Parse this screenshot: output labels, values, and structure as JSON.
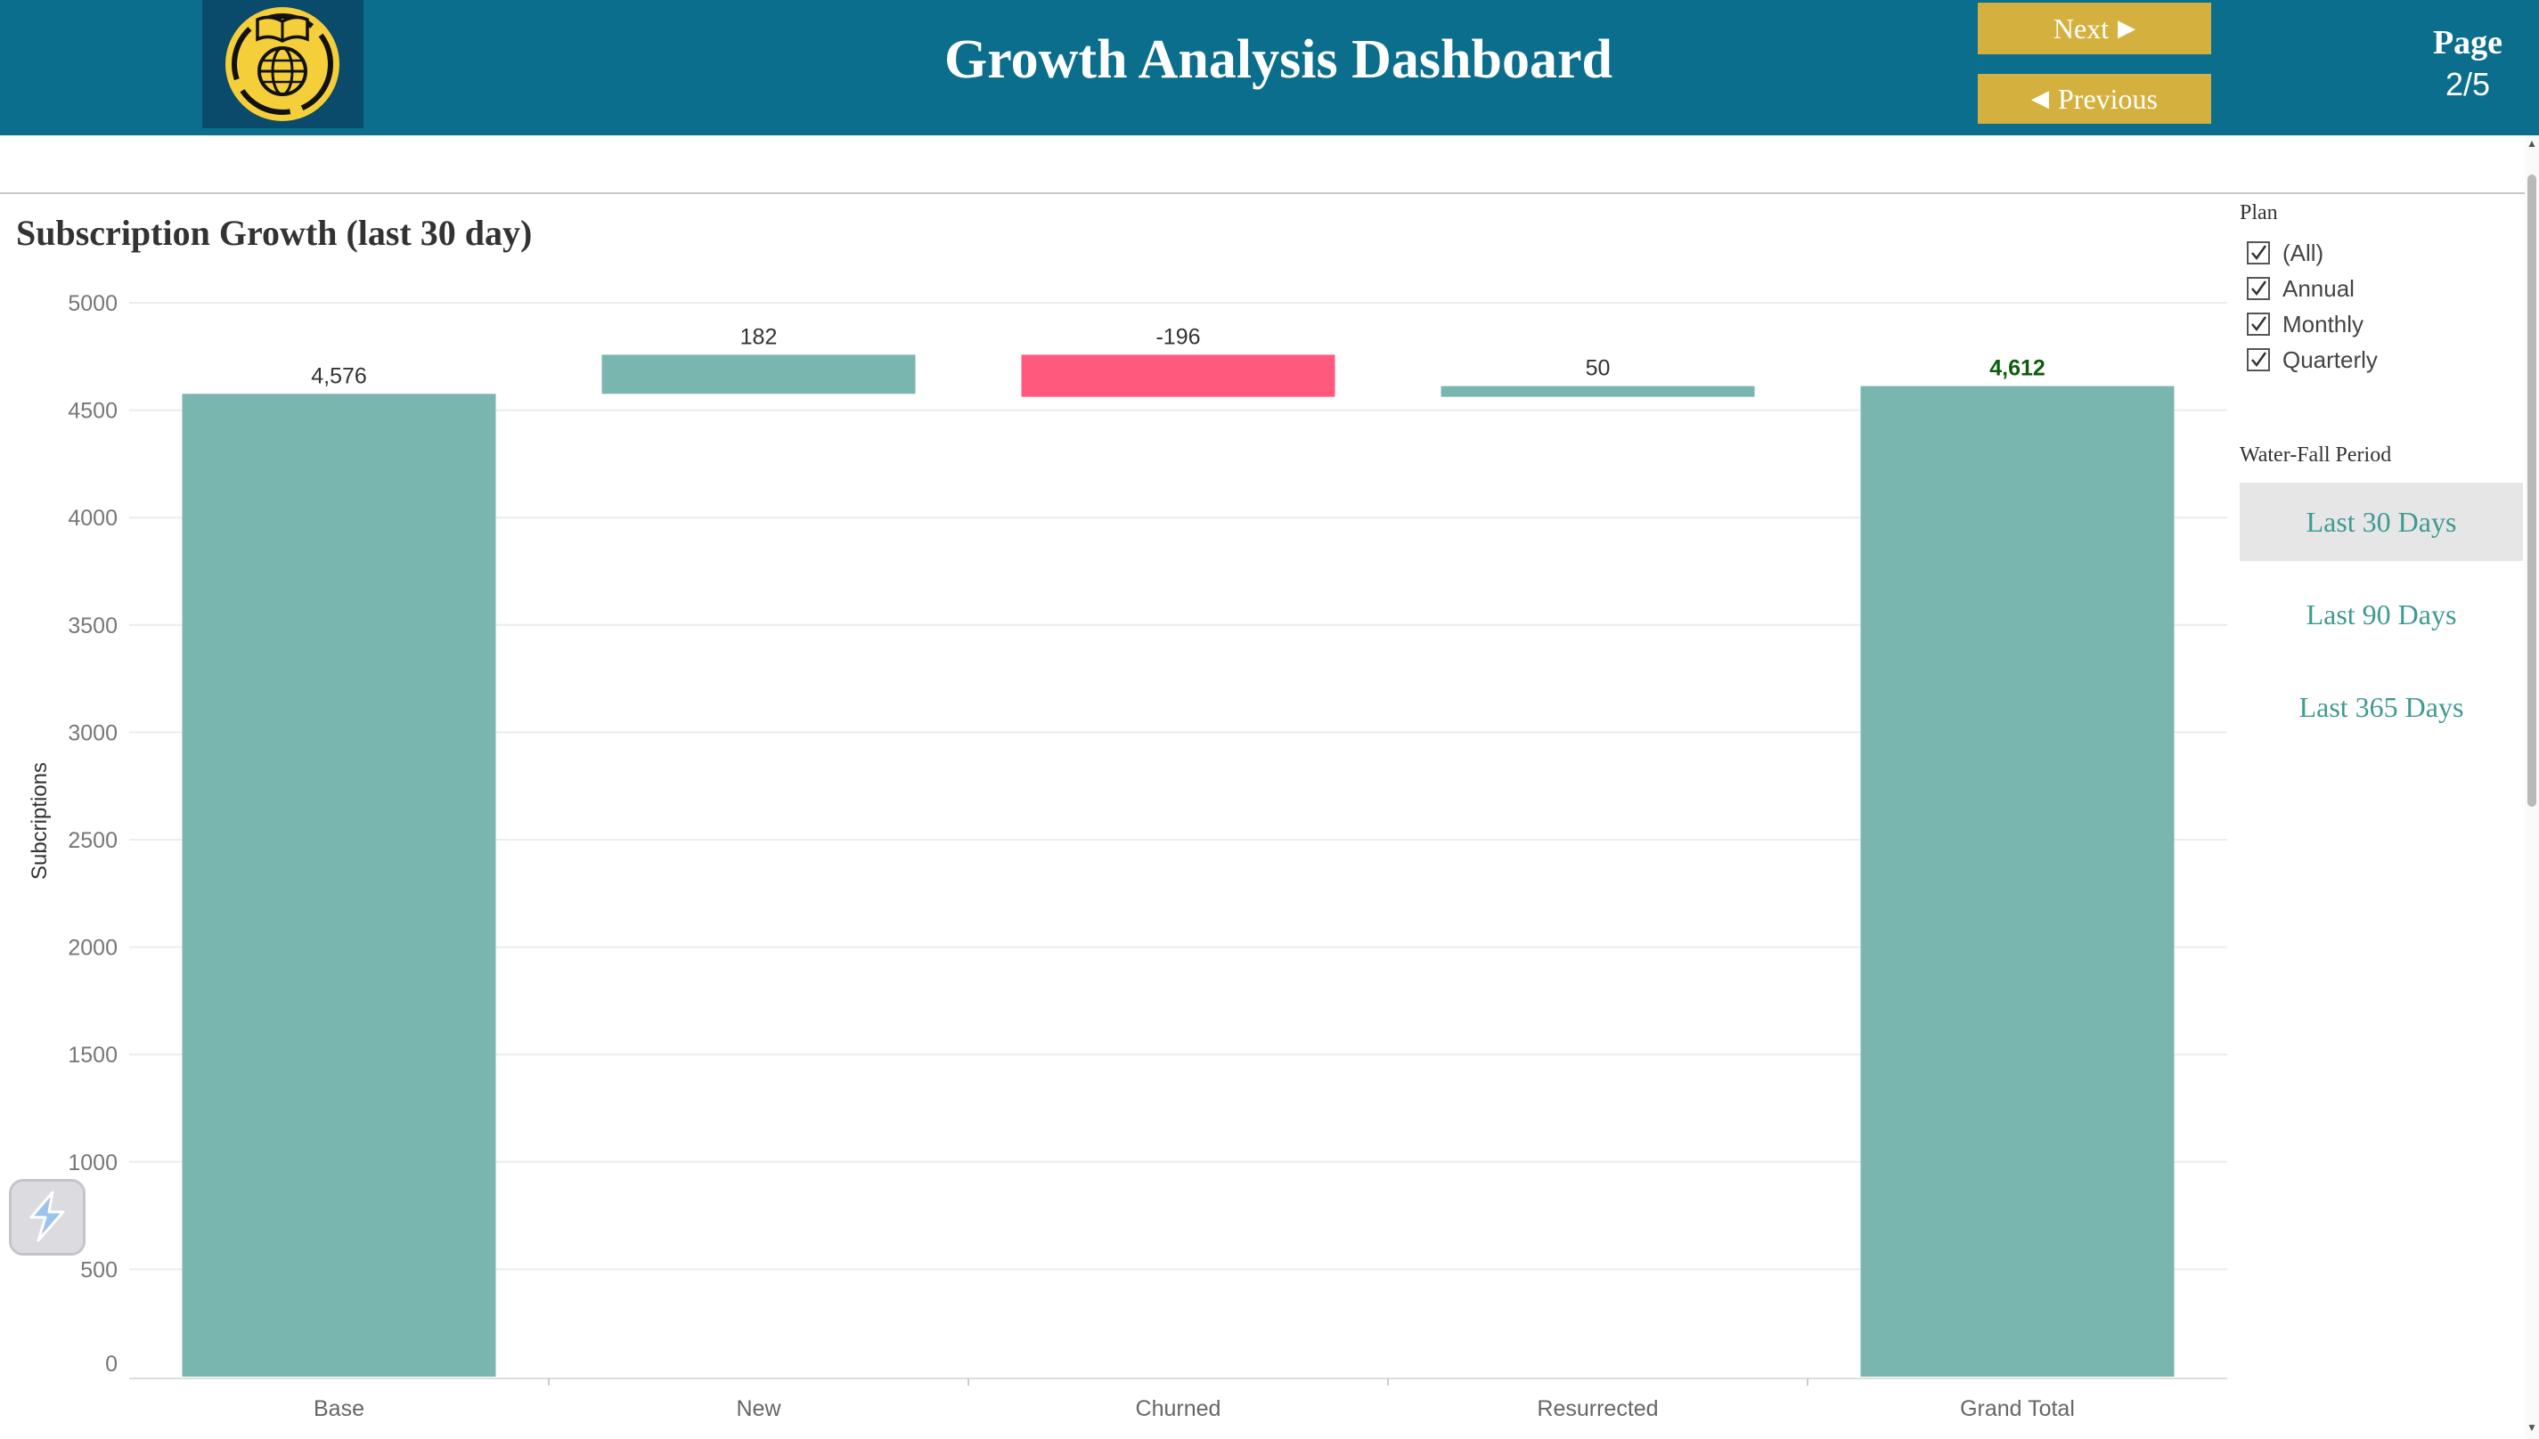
{
  "header": {
    "title": "Growth Analysis Dashboard",
    "next_label": "Next",
    "previous_label": "Previous",
    "page_label": "Page",
    "page_number": "2/5"
  },
  "chart_title": "Subscription Growth (last 30 day)",
  "filters": {
    "plan_title": "Plan",
    "plan_items": [
      {
        "label": "(All)",
        "checked": true
      },
      {
        "label": "Annual",
        "checked": true
      },
      {
        "label": "Monthly",
        "checked": true
      },
      {
        "label": "Quarterly",
        "checked": true
      }
    ],
    "period_title": "Water-Fall Period",
    "periods": [
      {
        "label": "Last 30 Days",
        "selected": true
      },
      {
        "label": "Last 90 Days",
        "selected": false
      },
      {
        "label": "Last 365 Days",
        "selected": false
      }
    ]
  },
  "colors": {
    "header_bg": "#0b6e8c",
    "button_gold": "#d4b13f",
    "bar_teal": "#7ab6b0",
    "bar_negative": "#ff5a7d",
    "total_label": "#0d5e0d"
  },
  "icons": {
    "logo": "book-globe-logo-icon",
    "next": "triangle-right-icon",
    "previous": "triangle-left-icon",
    "widget": "lightning-widget-icon"
  },
  "chart_data": {
    "type": "bar",
    "subtype": "waterfall",
    "title": "Subscription Growth (last 30 day)",
    "xlabel": "",
    "ylabel": "Subcriptions",
    "categories": [
      "Base",
      "New",
      "Churned",
      "Resurrected",
      "Grand Total"
    ],
    "values": [
      4576,
      182,
      -196,
      50,
      4612
    ],
    "data_labels": [
      "4,576",
      "182",
      "-196",
      "50",
      "4,612"
    ],
    "ylim": [
      0,
      5000
    ],
    "yticks": [
      0,
      500,
      1000,
      1500,
      2000,
      2500,
      3000,
      3500,
      4000,
      4500,
      5000
    ],
    "grid": true,
    "legend": "none"
  }
}
